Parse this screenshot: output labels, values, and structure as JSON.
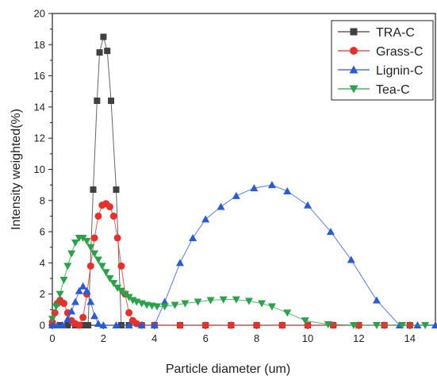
{
  "chart_data": {
    "type": "line",
    "xlabel": "Particle diameter (um)",
    "ylabel": "Intensity weighted(%)",
    "xlim": [
      0,
      15
    ],
    "ylim": [
      0,
      20
    ],
    "xticks": [
      0,
      2,
      4,
      6,
      8,
      10,
      12,
      14
    ],
    "yticks": [
      0,
      2,
      4,
      6,
      8,
      10,
      12,
      14,
      16,
      18,
      20
    ],
    "grid": false,
    "legend_position": "top-right",
    "series": [
      {
        "name": "TRA-C",
        "color": "#404040",
        "marker": "square",
        "points": [
          [
            0,
            0
          ],
          [
            0.3,
            0
          ],
          [
            0.6,
            0
          ],
          [
            0.9,
            0
          ],
          [
            1.2,
            0
          ],
          [
            1.4,
            0
          ],
          [
            1.6,
            8.7
          ],
          [
            1.75,
            14.4
          ],
          [
            1.85,
            17.5
          ],
          [
            2.0,
            18.5
          ],
          [
            2.15,
            17.6
          ],
          [
            2.3,
            14.4
          ],
          [
            2.5,
            8.7
          ],
          [
            2.7,
            0
          ],
          [
            3.0,
            0
          ],
          [
            3.5,
            0
          ],
          [
            4.0,
            0
          ],
          [
            5,
            0
          ],
          [
            6,
            0
          ],
          [
            7,
            0
          ],
          [
            8,
            0
          ],
          [
            9,
            0
          ],
          [
            10,
            0
          ],
          [
            11,
            0
          ],
          [
            12,
            0
          ],
          [
            13,
            0
          ],
          [
            14,
            0
          ]
        ]
      },
      {
        "name": "Grass-C",
        "color": "#e8302a",
        "marker": "circle",
        "points": [
          [
            0,
            0.2
          ],
          [
            0.1,
            0.8
          ],
          [
            0.2,
            1.4
          ],
          [
            0.3,
            1.6
          ],
          [
            0.45,
            1.4
          ],
          [
            0.6,
            0.8
          ],
          [
            0.75,
            0.3
          ],
          [
            0.9,
            0.1
          ],
          [
            1.05,
            0
          ],
          [
            1.2,
            0.5
          ],
          [
            1.35,
            2.0
          ],
          [
            1.5,
            3.8
          ],
          [
            1.65,
            5.6
          ],
          [
            1.8,
            7.0
          ],
          [
            1.95,
            7.7
          ],
          [
            2.1,
            7.8
          ],
          [
            2.25,
            7.6
          ],
          [
            2.4,
            7.0
          ],
          [
            2.55,
            5.6
          ],
          [
            2.7,
            3.8
          ],
          [
            2.85,
            2.0
          ],
          [
            3.0,
            0.8
          ],
          [
            3.15,
            0.3
          ],
          [
            3.3,
            0.1
          ],
          [
            3.5,
            0
          ],
          [
            4,
            0
          ],
          [
            5,
            0
          ],
          [
            6,
            0
          ],
          [
            7,
            0
          ],
          [
            8,
            0
          ],
          [
            9,
            0
          ],
          [
            10,
            0
          ],
          [
            11,
            0
          ],
          [
            12,
            0
          ],
          [
            13,
            0
          ],
          [
            14,
            0
          ]
        ]
      },
      {
        "name": "Lignin-C",
        "color": "#2a5bd7",
        "marker": "triangle-up",
        "points": [
          [
            0,
            0
          ],
          [
            0.2,
            0
          ],
          [
            0.4,
            0
          ],
          [
            0.6,
            0.4
          ],
          [
            0.75,
            0.9
          ],
          [
            0.9,
            1.5
          ],
          [
            1.05,
            2.2
          ],
          [
            1.2,
            2.5
          ],
          [
            1.35,
            2.2
          ],
          [
            1.5,
            1.5
          ],
          [
            1.65,
            0.6
          ],
          [
            1.8,
            0.1
          ],
          [
            2.0,
            0
          ],
          [
            2.5,
            0
          ],
          [
            3.0,
            0
          ],
          [
            3.5,
            0
          ],
          [
            4.0,
            0
          ],
          [
            4.4,
            1.5
          ],
          [
            5.0,
            4.0
          ],
          [
            5.5,
            5.6
          ],
          [
            6.0,
            6.8
          ],
          [
            6.6,
            7.6
          ],
          [
            7.2,
            8.3
          ],
          [
            7.9,
            8.8
          ],
          [
            8.6,
            9.0
          ],
          [
            9.2,
            8.6
          ],
          [
            10.0,
            7.7
          ],
          [
            10.9,
            6.0
          ],
          [
            11.7,
            4.2
          ],
          [
            12.7,
            1.6
          ],
          [
            13.6,
            0
          ],
          [
            14.3,
            0
          ],
          [
            15.0,
            0
          ]
        ]
      },
      {
        "name": "Tea-C",
        "color": "#2aa24a",
        "marker": "triangle-down",
        "points": [
          [
            0,
            0.4
          ],
          [
            0.15,
            1.2
          ],
          [
            0.3,
            2.0
          ],
          [
            0.45,
            2.9
          ],
          [
            0.6,
            3.8
          ],
          [
            0.75,
            4.6
          ],
          [
            0.9,
            5.3
          ],
          [
            1.05,
            5.6
          ],
          [
            1.2,
            5.6
          ],
          [
            1.35,
            5.4
          ],
          [
            1.5,
            5.0
          ],
          [
            1.65,
            4.6
          ],
          [
            1.8,
            4.2
          ],
          [
            1.95,
            3.8
          ],
          [
            2.1,
            3.4
          ],
          [
            2.25,
            3.0
          ],
          [
            2.4,
            2.7
          ],
          [
            2.55,
            2.4
          ],
          [
            2.7,
            2.2
          ],
          [
            2.85,
            2.0
          ],
          [
            3.0,
            1.8
          ],
          [
            3.15,
            1.6
          ],
          [
            3.3,
            1.5
          ],
          [
            3.5,
            1.4
          ],
          [
            3.7,
            1.3
          ],
          [
            3.9,
            1.25
          ],
          [
            4.1,
            1.2
          ],
          [
            4.4,
            1.2
          ],
          [
            4.8,
            1.3
          ],
          [
            5.2,
            1.4
          ],
          [
            5.7,
            1.5
          ],
          [
            6.2,
            1.6
          ],
          [
            6.7,
            1.65
          ],
          [
            7.2,
            1.65
          ],
          [
            7.7,
            1.55
          ],
          [
            8.2,
            1.4
          ],
          [
            8.6,
            1.2
          ],
          [
            9.2,
            0.8
          ],
          [
            9.9,
            0.3
          ],
          [
            10.8,
            0.05
          ],
          [
            11.8,
            0
          ],
          [
            12.7,
            0
          ],
          [
            13.7,
            0
          ],
          [
            14.6,
            0
          ]
        ]
      }
    ]
  }
}
